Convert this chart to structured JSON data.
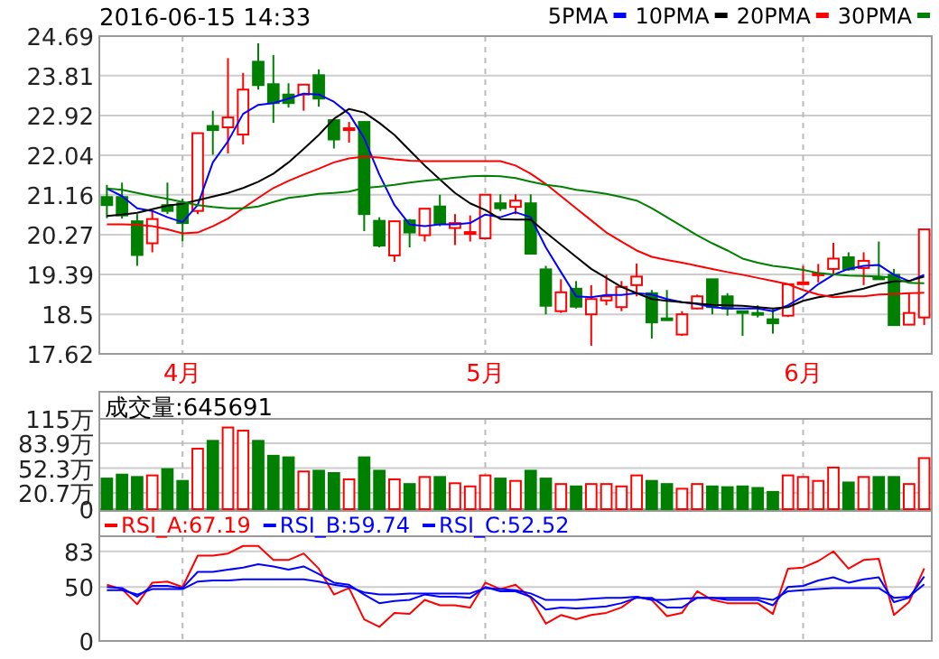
{
  "chart_data": [
    {
      "type": "candlestick",
      "title": "2016-06-15 14:33",
      "categories": [
        null,
        null,
        null,
        null,
        null,
        "4月",
        null,
        null,
        null,
        null,
        null,
        null,
        null,
        null,
        null,
        null,
        null,
        null,
        null,
        null,
        null,
        null,
        null,
        null,
        null,
        "5月",
        null,
        null,
        null,
        null,
        null,
        null,
        null,
        null,
        null,
        null,
        null,
        null,
        null,
        null,
        null,
        null,
        null,
        null,
        null,
        null,
        "6月",
        null,
        null,
        null,
        null,
        null,
        null,
        null,
        null
      ],
      "ohlc": [
        [
          21.11,
          21.38,
          20.64,
          20.93
        ],
        [
          21.11,
          21.43,
          20.63,
          20.7
        ],
        [
          20.57,
          20.73,
          19.58,
          19.82
        ],
        [
          20.08,
          20.8,
          19.88,
          20.62
        ],
        [
          20.93,
          21.43,
          20.73,
          20.8
        ],
        [
          20.97,
          21.07,
          20.12,
          20.53
        ],
        [
          20.8,
          22.53,
          20.73,
          22.53
        ],
        [
          22.69,
          23.03,
          22.05,
          22.6
        ],
        [
          22.66,
          24.2,
          22.08,
          22.88
        ],
        [
          22.5,
          23.87,
          22.28,
          23.5
        ],
        [
          24.12,
          24.53,
          23.5,
          23.6
        ],
        [
          23.62,
          24.27,
          22.76,
          23.2
        ],
        [
          23.39,
          23.64,
          23.1,
          23.2
        ],
        [
          23.39,
          23.61,
          23.03,
          23.61
        ],
        [
          23.82,
          23.95,
          23.12,
          23.3
        ],
        [
          22.82,
          22.84,
          22.19,
          22.39
        ],
        [
          22.62,
          22.78,
          22.32,
          22.64
        ],
        [
          22.78,
          22.78,
          20.35,
          20.73
        ],
        [
          20.58,
          20.66,
          19.99,
          20.03
        ],
        [
          19.81,
          20.59,
          19.67,
          20.57
        ],
        [
          20.59,
          20.62,
          19.99,
          20.32
        ],
        [
          20.26,
          20.85,
          20.12,
          20.85
        ],
        [
          20.9,
          21.16,
          20.46,
          20.51
        ],
        [
          20.42,
          20.73,
          20.04,
          20.53
        ],
        [
          20.3,
          20.7,
          20.12,
          20.33
        ],
        [
          20.19,
          21.16,
          20.16,
          21.16
        ],
        [
          20.97,
          21.17,
          20.8,
          20.86
        ],
        [
          20.89,
          21.17,
          20.73,
          21.03
        ],
        [
          20.97,
          21.17,
          19.85,
          19.85
        ],
        [
          19.5,
          19.58,
          18.5,
          18.69
        ],
        [
          18.57,
          19.28,
          18.53,
          18.99
        ],
        [
          19.07,
          19.24,
          18.63,
          18.67
        ],
        [
          18.5,
          19.15,
          17.8,
          18.84
        ],
        [
          18.81,
          19.38,
          18.7,
          18.9
        ],
        [
          18.66,
          19.24,
          18.57,
          19.11
        ],
        [
          19.15,
          19.63,
          18.9,
          19.34
        ],
        [
          18.97,
          19.04,
          17.96,
          18.32
        ],
        [
          18.41,
          19.04,
          18.36,
          18.39
        ],
        [
          18.05,
          18.57,
          18.02,
          18.5
        ],
        [
          18.63,
          18.94,
          18.61,
          18.9
        ],
        [
          19.28,
          19.28,
          18.5,
          18.66
        ],
        [
          18.9,
          18.97,
          18.47,
          18.63
        ],
        [
          18.57,
          18.57,
          18.02,
          18.56
        ],
        [
          18.53,
          18.7,
          18.43,
          18.52
        ],
        [
          18.39,
          18.61,
          18.07,
          18.3
        ],
        [
          18.47,
          19.17,
          18.44,
          19.17
        ],
        [
          19.19,
          19.58,
          19.17,
          19.21
        ],
        [
          19.39,
          19.62,
          19.21,
          19.41
        ],
        [
          19.51,
          20.09,
          19.38,
          19.74
        ],
        [
          19.77,
          19.88,
          19.47,
          19.5
        ],
        [
          19.53,
          19.88,
          19.15,
          19.69
        ],
        [
          19.32,
          20.12,
          19.3,
          19.31
        ],
        [
          19.38,
          19.51,
          18.26,
          18.26
        ],
        [
          18.27,
          18.97,
          18.26,
          18.53
        ],
        [
          18.43,
          20.39,
          18.26,
          20.39
        ]
      ],
      "colors": [
        "#008000",
        "#008000",
        "#008000",
        "#ff0000",
        "#008000",
        "#008000",
        "#ff0000",
        "#008000",
        "#ff0000",
        "#ff0000",
        "#008000",
        "#008000",
        "#008000",
        "#ff0000",
        "#008000",
        "#008000",
        "#ff0000",
        "#008000",
        "#008000",
        "#ff0000",
        "#008000",
        "#ff0000",
        "#008000",
        "#ff0000",
        "#ff0000",
        "#ff0000",
        "#008000",
        "#ff0000",
        "#008000",
        "#008000",
        "#ff0000",
        "#008000",
        "#ff0000",
        "#ff0000",
        "#ff0000",
        "#ff0000",
        "#008000",
        "#008000",
        "#ff0000",
        "#ff0000",
        "#008000",
        "#008000",
        "#008000",
        "#008000",
        "#008000",
        "#ff0000",
        "#ff0000",
        "#ff0000",
        "#ff0000",
        "#008000",
        "#ff0000",
        "#008000",
        "#008000",
        "#ff0000",
        "#ff0000"
      ],
      "series": [
        {
          "name": "5PMA",
          "type": "line",
          "color": "#0000ff",
          "values": [
            21.3,
            21.13,
            20.86,
            20.8,
            20.66,
            20.55,
            20.93,
            21.88,
            22.35,
            22.96,
            23.16,
            23.2,
            23.3,
            23.41,
            23.39,
            23.23,
            22.96,
            22.42,
            21.61,
            20.93,
            20.5,
            20.46,
            20.5,
            20.5,
            20.53,
            20.72,
            20.66,
            20.77,
            20.66,
            19.99,
            19.44,
            18.9,
            18.88,
            18.93,
            18.93,
            18.97,
            18.94,
            18.84,
            18.77,
            18.73,
            18.66,
            18.63,
            18.63,
            18.63,
            18.57,
            18.7,
            18.9,
            19.17,
            19.38,
            19.51,
            19.58,
            19.6,
            19.38,
            19.24,
            19.38
          ]
        },
        {
          "name": "10PMA",
          "type": "line",
          "color": "#000000",
          "values": [
            20.69,
            20.72,
            20.76,
            20.84,
            20.92,
            20.96,
            21.04,
            21.12,
            21.2,
            21.31,
            21.45,
            21.63,
            21.88,
            22.18,
            22.49,
            22.85,
            23.07,
            22.99,
            22.76,
            22.49,
            22.15,
            21.81,
            21.5,
            21.2,
            20.97,
            20.82,
            20.62,
            20.61,
            20.61,
            20.32,
            20.05,
            19.78,
            19.51,
            19.31,
            19.11,
            18.97,
            18.84,
            18.8,
            18.77,
            18.74,
            18.71,
            18.7,
            18.69,
            18.66,
            18.63,
            18.66,
            18.8,
            18.88,
            18.93,
            19.0,
            19.07,
            19.17,
            19.23,
            19.24,
            19.34
          ]
        },
        {
          "name": "20PMA",
          "type": "line",
          "color": "#ff0000",
          "values": [
            20.5,
            20.5,
            20.49,
            20.46,
            20.39,
            20.3,
            20.32,
            20.46,
            20.63,
            20.86,
            21.09,
            21.31,
            21.47,
            21.61,
            21.74,
            21.88,
            21.97,
            22.01,
            21.99,
            21.95,
            21.92,
            21.91,
            21.91,
            21.91,
            21.91,
            21.91,
            21.91,
            21.81,
            21.63,
            21.4,
            21.13,
            20.86,
            20.59,
            20.32,
            20.12,
            19.92,
            19.78,
            19.71,
            19.65,
            19.58,
            19.51,
            19.44,
            19.38,
            19.31,
            19.24,
            19.17,
            19.04,
            18.94,
            18.88,
            18.9,
            18.9,
            18.94,
            18.95,
            18.97,
            18.98
          ]
        },
        {
          "name": "30PMA",
          "type": "line",
          "color": "#008000",
          "values": [
            21.3,
            21.27,
            21.2,
            21.13,
            21.07,
            21.0,
            20.93,
            20.89,
            20.86,
            20.86,
            20.9,
            21.0,
            21.09,
            21.13,
            21.18,
            21.2,
            21.23,
            21.31,
            21.34,
            21.38,
            21.43,
            21.47,
            21.5,
            21.54,
            21.57,
            21.58,
            21.57,
            21.53,
            21.45,
            21.38,
            21.34,
            21.27,
            21.23,
            21.18,
            21.11,
            21.03,
            20.86,
            20.66,
            20.46,
            20.26,
            20.08,
            19.92,
            19.74,
            19.65,
            19.58,
            19.54,
            19.49,
            19.42,
            19.39,
            19.36,
            19.35,
            19.34,
            19.31,
            19.2,
            19.19
          ]
        }
      ],
      "ylim": [
        17.62,
        24.69
      ],
      "yticks": [
        17.62,
        18.5,
        19.39,
        20.27,
        21.16,
        22.04,
        22.92,
        23.81,
        24.69
      ],
      "grid": true,
      "legend": "top right"
    },
    {
      "type": "bar",
      "title": "成交量:645691",
      "categories": [
        null,
        null,
        null,
        null,
        null,
        null,
        null,
        null,
        null,
        null,
        null,
        null,
        null,
        null,
        null,
        null,
        null,
        null,
        null,
        null,
        null,
        null,
        null,
        null,
        null,
        null,
        null,
        null,
        null,
        null,
        null,
        null,
        null,
        null,
        null,
        null,
        null,
        null,
        null,
        null,
        null,
        null,
        null,
        null,
        null,
        null,
        null,
        null,
        null,
        null,
        null,
        null,
        null,
        null,
        null
      ],
      "values": [
        39,
        44,
        41,
        43,
        51,
        36,
        77,
        87,
        104,
        100,
        87,
        68,
        66,
        48,
        49,
        46,
        38,
        66,
        49,
        38,
        32,
        41,
        41,
        33,
        29,
        43,
        39,
        36,
        49,
        39,
        32,
        29,
        32,
        32,
        29,
        43,
        36,
        32,
        26,
        32,
        29,
        28,
        29,
        27,
        22,
        43,
        41,
        36,
        53,
        34,
        41,
        41,
        41,
        32,
        65
      ],
      "colors": [
        "#008000",
        "#008000",
        "#008000",
        "#ff0000",
        "#008000",
        "#008000",
        "#ff0000",
        "#008000",
        "#ff0000",
        "#ff0000",
        "#008000",
        "#008000",
        "#008000",
        "#ff0000",
        "#008000",
        "#008000",
        "#ff0000",
        "#008000",
        "#008000",
        "#ff0000",
        "#008000",
        "#ff0000",
        "#008000",
        "#ff0000",
        "#ff0000",
        "#ff0000",
        "#008000",
        "#ff0000",
        "#008000",
        "#008000",
        "#ff0000",
        "#008000",
        "#ff0000",
        "#ff0000",
        "#ff0000",
        "#ff0000",
        "#008000",
        "#008000",
        "#ff0000",
        "#ff0000",
        "#008000",
        "#008000",
        "#008000",
        "#008000",
        "#008000",
        "#ff0000",
        "#ff0000",
        "#ff0000",
        "#ff0000",
        "#008000",
        "#ff0000",
        "#008000",
        "#008000",
        "#ff0000",
        "#ff0000"
      ],
      "ylim": [
        0,
        115
      ],
      "yticks": [
        0,
        {
          "value": 20.7,
          "label": "20.7万"
        },
        {
          "value": 52.3,
          "label": "52.3万"
        },
        {
          "value": 83.9,
          "label": "83.9万"
        },
        {
          "value": 115,
          "label": "115万"
        }
      ],
      "grid": true
    },
    {
      "type": "line",
      "categories": [
        null,
        null,
        null,
        null,
        null,
        null,
        null,
        null,
        null,
        null,
        null,
        null,
        null,
        null,
        null,
        null,
        null,
        null,
        null,
        null,
        null,
        null,
        null,
        null,
        null,
        null,
        null,
        null,
        null,
        null,
        null,
        null,
        null,
        null,
        null,
        null,
        null,
        null,
        null,
        null,
        null,
        null,
        null,
        null,
        null,
        null,
        null,
        null,
        null,
        null,
        null,
        null,
        null,
        null,
        null
      ],
      "series": [
        {
          "name": "RSI_A:67.19",
          "color": "#ff0000",
          "values": [
            52,
            48,
            34,
            54,
            55,
            50,
            79,
            79,
            81,
            88,
            88,
            75,
            75,
            81,
            67,
            43,
            49,
            20,
            13,
            26,
            25,
            38,
            33,
            33,
            31,
            54,
            48,
            52,
            40,
            16,
            24,
            20,
            24,
            26,
            31,
            41,
            38,
            23,
            26,
            46,
            38,
            35,
            35,
            35,
            25,
            67,
            68,
            74,
            83,
            67,
            75,
            76,
            24,
            36,
            67.19
          ]
        },
        {
          "name": "RSI_B:59.74",
          "color": "#0000ff",
          "values": [
            50,
            49,
            41,
            51,
            51,
            49,
            64,
            64,
            66,
            68,
            71,
            69,
            66,
            69,
            62,
            54,
            52,
            43,
            35,
            37,
            38,
            43,
            41,
            41,
            40,
            50,
            46,
            46,
            41,
            29,
            31,
            30,
            31,
            32,
            35,
            40,
            40,
            31,
            31,
            40,
            40,
            38,
            38,
            38,
            33,
            50,
            51,
            56,
            59,
            54,
            57,
            59,
            36,
            40,
            59.74
          ]
        },
        {
          "name": "RSI_C:52.52",
          "color": "#0000ff",
          "values": [
            47,
            47,
            43,
            48,
            48,
            48,
            55,
            56,
            56,
            57,
            57,
            57,
            57,
            57,
            55,
            52,
            50,
            45,
            43,
            43,
            44,
            44,
            44,
            44,
            44,
            49,
            48,
            47,
            44,
            38,
            38,
            38,
            39,
            40,
            40,
            41,
            38,
            38,
            39,
            40,
            40,
            40,
            40,
            40,
            38,
            46,
            47,
            48,
            49,
            49,
            49,
            49,
            40,
            41,
            52.52
          ]
        }
      ],
      "ylim": [
        0,
        97
      ],
      "yticks": [
        0,
        50,
        83
      ],
      "grid": true,
      "legend": "top left"
    }
  ]
}
